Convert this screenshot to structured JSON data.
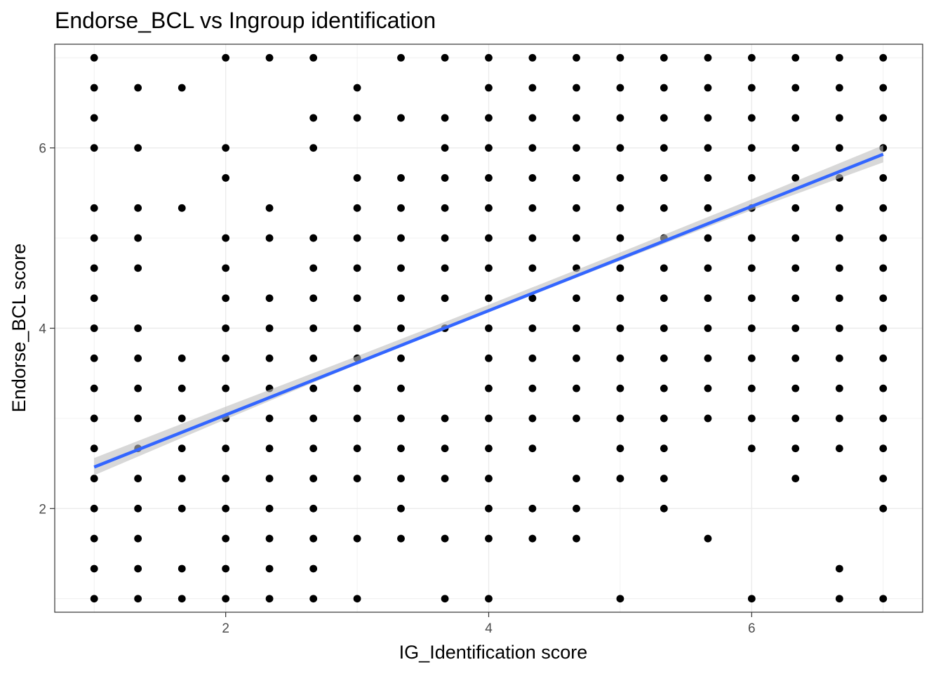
{
  "chart_data": {
    "type": "scatter",
    "title": "Endorse_BCL vs Ingroup identification",
    "xlabel": "IG_Identification score",
    "ylabel": "Endorse_BCL score",
    "xlim": [
      0.7,
      7.3
    ],
    "ylim": [
      0.85,
      7.15
    ],
    "x_ticks": [
      2,
      4,
      6
    ],
    "y_ticks": [
      2,
      4,
      6
    ],
    "x_tick_labels": [
      "2",
      "4",
      "6"
    ],
    "y_tick_labels": [
      "2",
      "4",
      "6"
    ],
    "grid": true,
    "legend": "none",
    "colors": {
      "points": "#000000",
      "fit_line": "#3366FF",
      "confidence_band": "#BEBEBE",
      "grid": "#EBEBEB",
      "panel_border": "#333333"
    },
    "x_levels": [
      1,
      1.333,
      1.667,
      2,
      2.333,
      2.667,
      3,
      3.333,
      3.667,
      4,
      4.333,
      4.667,
      5,
      5.333,
      5.667,
      6,
      6.333,
      6.667,
      7
    ],
    "columns": [
      {
        "x": 1,
        "y": [
          7,
          6.667,
          6.333,
          6,
          5.333,
          5,
          4.667,
          4.333,
          4,
          3.667,
          3.333,
          3,
          2.667,
          2.333,
          2,
          1.667,
          1.333,
          1
        ]
      },
      {
        "x": 1.333,
        "y": [
          6.667,
          6,
          5.333,
          5,
          4.667,
          4,
          3.667,
          3.333,
          3,
          2.667,
          2.333,
          2,
          1.667,
          1.333,
          1
        ]
      },
      {
        "x": 1.667,
        "y": [
          6.667,
          5.333,
          3.667,
          3.333,
          3,
          2.667,
          2.333,
          2,
          1.333,
          1
        ]
      },
      {
        "x": 2,
        "y": [
          7,
          6,
          5.667,
          5,
          4.667,
          4.333,
          4,
          3.667,
          3.333,
          3,
          2.667,
          2.333,
          2,
          1.667,
          1.333,
          1
        ]
      },
      {
        "x": 2.333,
        "y": [
          7,
          5.333,
          5,
          4.333,
          4,
          3.667,
          3.333,
          3,
          2.667,
          2.333,
          2,
          1.667,
          1.333,
          1
        ]
      },
      {
        "x": 2.667,
        "y": [
          7,
          6.333,
          6,
          5,
          4.667,
          4.333,
          4,
          3.667,
          3.333,
          3,
          2.667,
          2.333,
          2,
          1.667,
          1.333,
          1
        ]
      },
      {
        "x": 3,
        "y": [
          6.667,
          6.333,
          5.667,
          5.333,
          5,
          4.667,
          4.333,
          4,
          3.667,
          3.333,
          3,
          2.667,
          2.333,
          1.667,
          1
        ]
      },
      {
        "x": 3.333,
        "y": [
          7,
          6.333,
          5.667,
          5.333,
          5,
          4.667,
          4.333,
          4,
          3.667,
          3.333,
          3,
          2.667,
          2.333,
          2,
          1.667
        ]
      },
      {
        "x": 3.667,
        "y": [
          7,
          6.333,
          6,
          5.667,
          5.333,
          5,
          4.667,
          4.333,
          4,
          3,
          2.667,
          2.333,
          1.667,
          1
        ]
      },
      {
        "x": 4,
        "y": [
          7,
          6.667,
          6.333,
          6,
          5.667,
          5.333,
          5,
          4.667,
          4.333,
          4,
          3.667,
          3.333,
          3,
          2.667,
          2.333,
          2,
          1.667,
          1
        ]
      },
      {
        "x": 4.333,
        "y": [
          7,
          6.667,
          6.333,
          6,
          5.667,
          5.333,
          5,
          4.667,
          4.333,
          4,
          3.667,
          3.333,
          3,
          2.667,
          2,
          1.667
        ]
      },
      {
        "x": 4.667,
        "y": [
          7,
          6.667,
          6.333,
          6,
          5.667,
          5.333,
          5,
          4.667,
          4.333,
          4,
          3.667,
          3.333,
          3,
          2.333,
          2,
          1.667
        ]
      },
      {
        "x": 5,
        "y": [
          7,
          6.667,
          6.333,
          6,
          5.667,
          5.333,
          5,
          4.667,
          4.333,
          4,
          3.667,
          3.333,
          3,
          2.667,
          2.333,
          1
        ]
      },
      {
        "x": 5.333,
        "y": [
          7,
          6.667,
          6.333,
          6,
          5.667,
          5.333,
          5,
          4.667,
          4.333,
          4,
          3.667,
          3.333,
          3,
          2.667,
          2.333,
          2
        ]
      },
      {
        "x": 5.667,
        "y": [
          7,
          6.667,
          6.333,
          6,
          5.667,
          5.333,
          5,
          4.667,
          4.333,
          4,
          3.667,
          3.333,
          3,
          1.667
        ]
      },
      {
        "x": 6,
        "y": [
          7,
          6.667,
          6.333,
          6,
          5.667,
          5.333,
          5,
          4.667,
          4.333,
          4,
          3.667,
          3.333,
          3,
          2.667,
          1
        ]
      },
      {
        "x": 6.333,
        "y": [
          7,
          6.667,
          6.333,
          6,
          5.667,
          5.333,
          5,
          4.667,
          4.333,
          4,
          3.667,
          3.333,
          3,
          2.667,
          2.333
        ]
      },
      {
        "x": 6.667,
        "y": [
          7,
          6.667,
          6.333,
          6,
          5.667,
          5.333,
          5,
          4.667,
          4.333,
          4,
          3.667,
          3.333,
          3,
          2.667,
          1.333,
          1
        ]
      },
      {
        "x": 7,
        "y": [
          7,
          6.667,
          6.333,
          6,
          5.667,
          5.333,
          5,
          4.667,
          4.333,
          4,
          3.667,
          3.333,
          3,
          2.667,
          2.333,
          2,
          1
        ]
      }
    ],
    "fit": {
      "method": "linear",
      "x": [
        1,
        7
      ],
      "y": [
        2.46,
        5.93
      ],
      "se_band": {
        "x": [
          1,
          2,
          3,
          4,
          5,
          6,
          7
        ],
        "lower": [
          2.37,
          2.99,
          3.6,
          4.18,
          4.75,
          5.31,
          5.84
        ],
        "upper": [
          2.56,
          3.13,
          3.69,
          4.26,
          4.84,
          5.43,
          6.03
        ]
      }
    }
  }
}
